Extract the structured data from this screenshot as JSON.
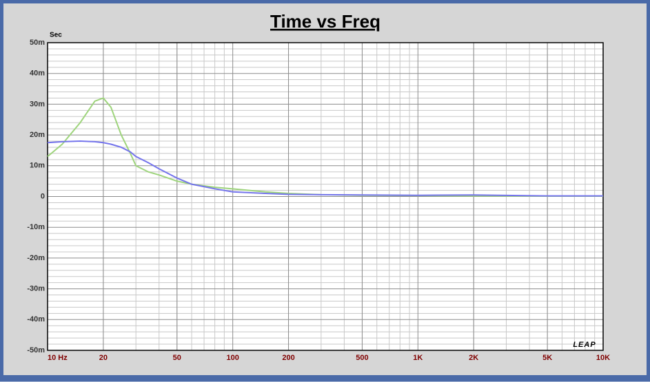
{
  "chart_data": {
    "type": "line",
    "title": "Time vs Freq",
    "y_label": "Sec",
    "logo": "LEAP",
    "xscale": "log",
    "xlim": [
      10,
      10000
    ],
    "ylim": [
      -0.05,
      0.05
    ],
    "grid": true,
    "xticks": [
      {
        "value": 10,
        "label": "10 Hz"
      },
      20,
      50,
      100,
      200,
      500,
      {
        "value": 1000,
        "label": "1K"
      },
      {
        "value": 2000,
        "label": "2K"
      },
      {
        "value": 5000,
        "label": "5K"
      },
      {
        "value": 10000,
        "label": "10K"
      }
    ],
    "yticks": [
      {
        "value": 0.05,
        "label": "50m"
      },
      {
        "value": 0.04,
        "label": "40m"
      },
      {
        "value": 0.03,
        "label": "30m"
      },
      {
        "value": 0.02,
        "label": "20m"
      },
      {
        "value": 0.01,
        "label": "10m"
      },
      0,
      {
        "value": -0.01,
        "label": "-10m"
      },
      {
        "value": -0.02,
        "label": "-20m"
      },
      {
        "value": -0.03,
        "label": "-30m"
      },
      {
        "value": -0.04,
        "label": "-40m"
      },
      {
        "value": -0.05,
        "label": "-50m"
      }
    ],
    "x": [
      10,
      12,
      15,
      18,
      20,
      22,
      25,
      28,
      30,
      35,
      40,
      50,
      60,
      80,
      100,
      150,
      200,
      300,
      500,
      1000,
      2000,
      5000,
      10000
    ],
    "series": [
      {
        "color": "#9ed47c",
        "values": [
          0.013,
          0.017,
          0.024,
          0.031,
          0.032,
          0.029,
          0.02,
          0.014,
          0.01,
          0.008,
          0.007,
          0.005,
          0.004,
          0.003,
          0.0025,
          0.0015,
          0.001,
          0.0006,
          0.0004,
          0.0003,
          0.0002,
          0.0001,
          0.0001
        ]
      },
      {
        "color": "#7474ec",
        "values": [
          0.0175,
          0.0178,
          0.018,
          0.0178,
          0.0175,
          0.017,
          0.016,
          0.0145,
          0.013,
          0.011,
          0.009,
          0.006,
          0.004,
          0.0025,
          0.0015,
          0.001,
          0.0007,
          0.0006,
          0.0005,
          0.0004,
          0.0005,
          0.0002,
          0.0002
        ]
      }
    ]
  }
}
